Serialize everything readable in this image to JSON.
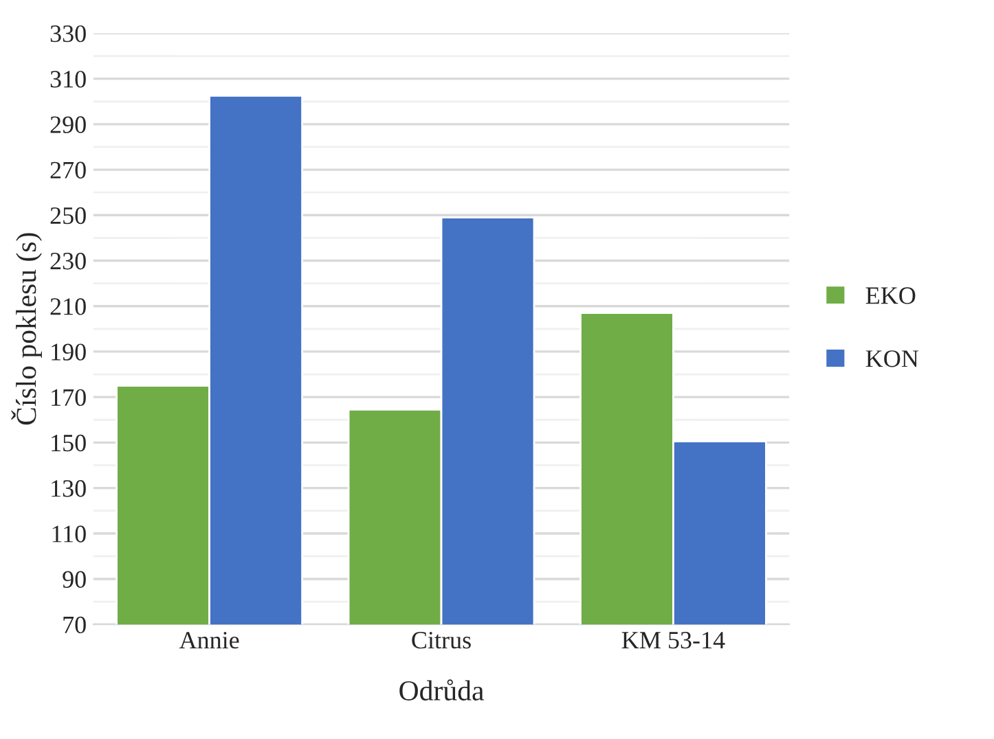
{
  "chart_data": {
    "type": "bar",
    "xlabel": "Odrůda",
    "ylabel": "Číslo poklesu (s)",
    "categories": [
      "Annie",
      "Citrus",
      "KM 53-14"
    ],
    "series": [
      {
        "name": "EKO",
        "color": "#70ad47",
        "values": [
          175,
          164.5,
          207
        ]
      },
      {
        "name": "KON",
        "color": "#4472c4",
        "values": [
          302.5,
          249,
          150.5
        ]
      }
    ],
    "ylim": [
      70,
      330
    ],
    "yticks": [
      70,
      90,
      110,
      130,
      150,
      170,
      190,
      210,
      230,
      250,
      270,
      290,
      310,
      330
    ],
    "grid": "y",
    "legend": "right"
  }
}
